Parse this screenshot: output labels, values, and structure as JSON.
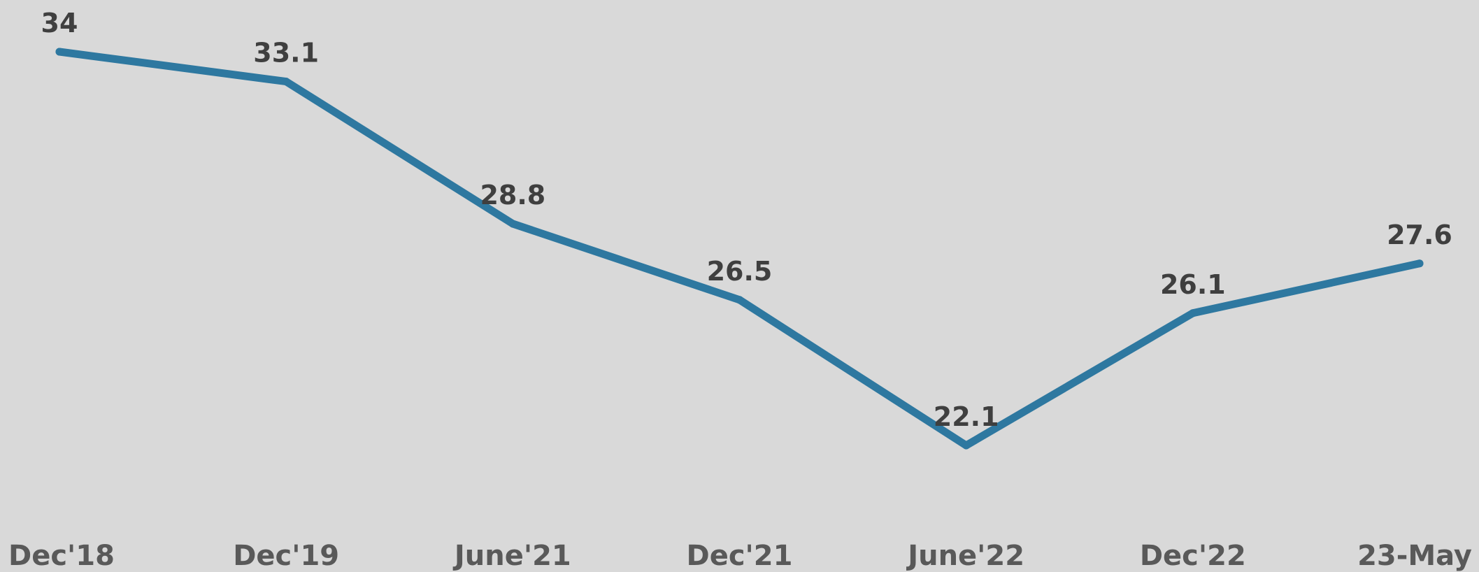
{
  "chart_data": {
    "type": "line",
    "title": "",
    "xlabel": "",
    "ylabel": "",
    "categories": [
      "Dec'18",
      "Dec'19",
      "June'21",
      "Dec'21",
      "June'22",
      "Dec'22",
      "23-May"
    ],
    "series": [
      {
        "values": [
          34,
          33.1,
          28.8,
          26.5,
          22.1,
          26.1,
          27.6
        ],
        "labels": [
          "34",
          "33.1",
          "28.8",
          "26.5",
          "22.1",
          "26.1",
          "27.6"
        ],
        "color": "#2e78a0"
      }
    ],
    "grid": false,
    "legend": "none"
  }
}
